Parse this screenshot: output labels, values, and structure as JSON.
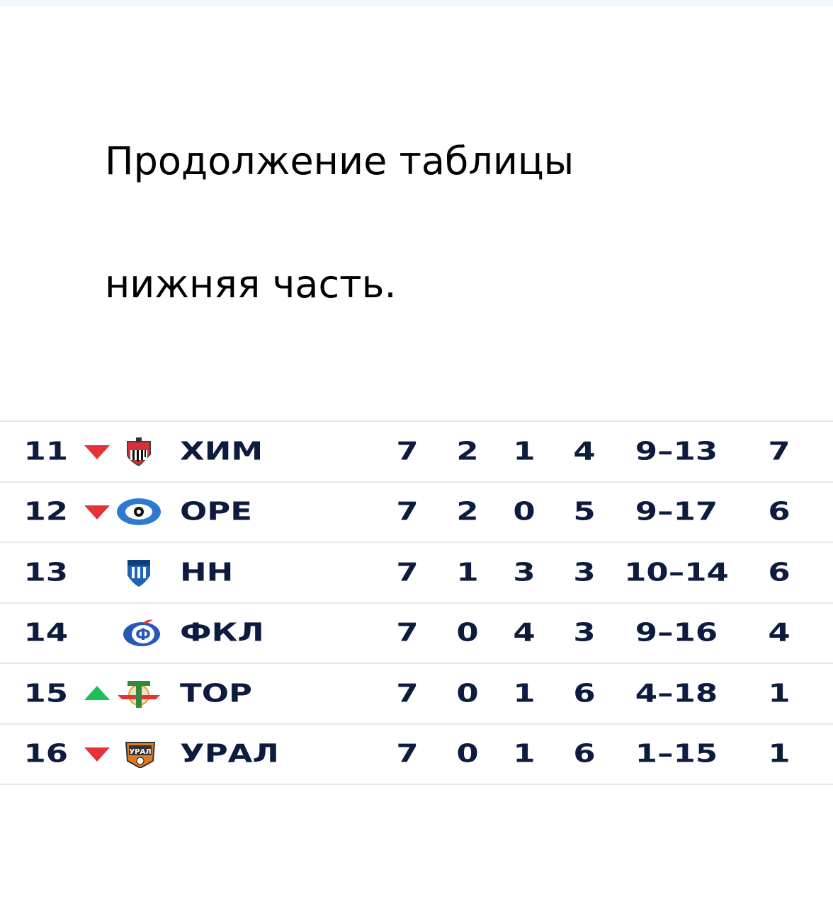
{
  "heading": {
    "line1": "Продолжение таблицы",
    "line2": "нижняя часть."
  },
  "colors": {
    "text": "#0d1b3e",
    "down": "#e53238",
    "up": "#1dbf57",
    "divider": "#e6e7ea"
  },
  "rows": [
    {
      "rank": "11",
      "trend": "down",
      "logo": "khimki-crest-icon",
      "team": "ХИМ",
      "played": "7",
      "won": "2",
      "drawn": "1",
      "lost": "4",
      "goals": "9–13",
      "points": "7"
    },
    {
      "rank": "12",
      "trend": "down",
      "logo": "orenburg-crest-icon",
      "team": "ОРЕ",
      "played": "7",
      "won": "2",
      "drawn": "0",
      "lost": "5",
      "goals": "9–17",
      "points": "6"
    },
    {
      "rank": "13",
      "trend": "none",
      "logo": "pari-nn-crest-icon",
      "team": "НН",
      "played": "7",
      "won": "1",
      "drawn": "3",
      "lost": "3",
      "goals": "10–14",
      "points": "6"
    },
    {
      "rank": "14",
      "trend": "none",
      "logo": "fakel-crest-icon",
      "team": "ФКЛ",
      "played": "7",
      "won": "0",
      "drawn": "4",
      "lost": "3",
      "goals": "9–16",
      "points": "4"
    },
    {
      "rank": "15",
      "trend": "up",
      "logo": "torpedo-crest-icon",
      "team": "ТОР",
      "played": "7",
      "won": "0",
      "drawn": "1",
      "lost": "6",
      "goals": "4–18",
      "points": "1"
    },
    {
      "rank": "16",
      "trend": "down",
      "logo": "ural-crest-icon",
      "team": "УРАЛ",
      "played": "7",
      "won": "0",
      "drawn": "1",
      "lost": "6",
      "goals": "1–15",
      "points": "1"
    }
  ]
}
